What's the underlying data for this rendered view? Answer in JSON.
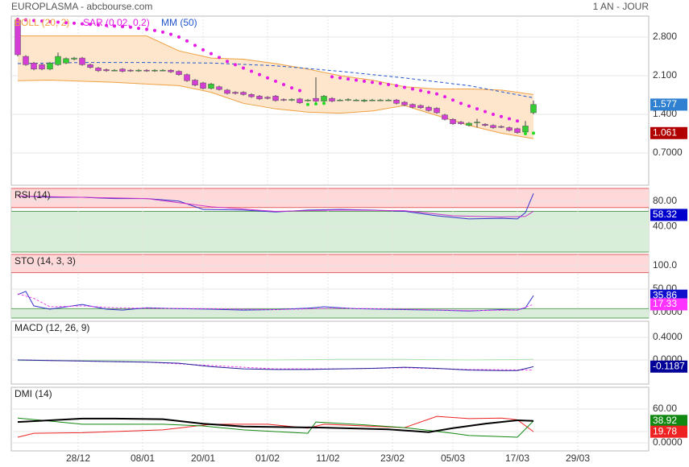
{
  "header": {
    "title": "EUROPLASMA - abcbourse.com",
    "period": "1 AN - JOUR"
  },
  "chart_data": [
    {
      "type": "candlestick",
      "open": [
        3.11,
        2.45,
        2.33,
        2.3,
        2.22,
        2.3,
        2.33,
        2.4,
        2.42,
        2.3,
        2.24,
        2.21,
        2.2,
        2.22,
        2.2,
        2.19,
        2.2,
        2.19,
        2.2,
        2.2,
        2.18,
        2.12,
        2.02,
        1.97,
        1.87,
        1.9,
        1.84,
        1.8,
        1.8,
        1.76,
        1.73,
        1.71,
        1.73,
        1.67,
        1.66,
        1.68,
        1.65,
        1.69,
        1.64,
        1.69,
        1.66,
        1.66,
        1.66,
        1.64,
        1.66,
        1.66,
        1.66,
        1.66,
        1.62,
        1.58,
        1.56,
        1.53,
        1.51,
        1.39,
        1.31,
        1.26,
        1.2,
        1.25,
        1.22,
        1.2,
        1.18,
        1.16,
        1.14,
        1.08,
        1.43
      ],
      "high": [
        3.15,
        2.47,
        2.35,
        2.32,
        2.35,
        2.52,
        2.43,
        2.44,
        2.44,
        2.32,
        2.26,
        2.23,
        2.22,
        2.24,
        2.22,
        2.22,
        2.22,
        2.22,
        2.22,
        2.22,
        2.2,
        2.14,
        2.04,
        1.99,
        1.97,
        1.92,
        1.86,
        1.82,
        1.82,
        1.78,
        1.75,
        1.73,
        1.75,
        1.69,
        1.69,
        1.7,
        1.68,
        2.07,
        1.75,
        1.71,
        1.68,
        1.69,
        1.68,
        1.68,
        1.68,
        1.68,
        1.68,
        1.68,
        1.64,
        1.6,
        1.58,
        1.55,
        1.53,
        1.41,
        1.33,
        1.28,
        1.26,
        1.32,
        1.24,
        1.22,
        1.2,
        1.18,
        1.16,
        1.28,
        1.65
      ],
      "low": [
        2.45,
        2.28,
        2.2,
        2.2,
        2.2,
        2.28,
        2.31,
        2.38,
        2.28,
        2.23,
        2.17,
        2.17,
        2.18,
        2.16,
        2.17,
        2.17,
        2.17,
        2.17,
        2.18,
        2.15,
        2.1,
        1.99,
        1.91,
        1.85,
        1.85,
        1.83,
        1.76,
        1.76,
        1.74,
        1.7,
        1.66,
        1.67,
        1.63,
        1.64,
        1.64,
        1.59,
        1.63,
        1.62,
        1.62,
        1.62,
        1.64,
        1.64,
        1.64,
        1.62,
        1.64,
        1.64,
        1.64,
        1.58,
        1.55,
        1.51,
        1.5,
        1.45,
        1.41,
        1.29,
        1.21,
        1.21,
        1.18,
        1.16,
        1.18,
        1.14,
        1.15,
        1.09,
        1.05,
        1.06,
        1.4
      ],
      "close": [
        2.48,
        2.3,
        2.22,
        2.22,
        2.33,
        2.45,
        2.41,
        2.42,
        2.3,
        2.25,
        2.19,
        2.19,
        2.2,
        2.18,
        2.19,
        2.2,
        2.19,
        2.2,
        2.2,
        2.17,
        2.12,
        2.01,
        1.93,
        1.87,
        1.95,
        1.85,
        1.78,
        1.78,
        1.76,
        1.72,
        1.68,
        1.69,
        1.65,
        1.66,
        1.67,
        1.61,
        1.66,
        1.64,
        1.73,
        1.64,
        1.66,
        1.67,
        1.66,
        1.66,
        1.66,
        1.66,
        1.66,
        1.6,
        1.57,
        1.53,
        1.52,
        1.47,
        1.43,
        1.31,
        1.23,
        1.23,
        1.24,
        1.26,
        1.2,
        1.16,
        1.17,
        1.11,
        1.07,
        1.19,
        1.58
      ],
      "up_color": "#33cc33",
      "down_color": "#d63cd6",
      "ylim": [
        0.117,
        3.18
      ],
      "yticks": [
        {
          "value": 2.8,
          "label": "2.800"
        },
        {
          "value": 2.1,
          "label": "2.100"
        },
        {
          "value": 1.4,
          "label": "1.400"
        },
        {
          "value": 0.7,
          "label": "0.7000"
        }
      ],
      "bands": {
        "name": "BOLL (20, 2)",
        "color": "#f0a040",
        "fill": "#fde6cc",
        "x": [
          0,
          4,
          8,
          12,
          16,
          20,
          24,
          28,
          32,
          36,
          40,
          44,
          48,
          52,
          56,
          60,
          64
        ],
        "upper": [
          2.82,
          2.82,
          2.82,
          2.82,
          2.82,
          2.55,
          2.42,
          2.4,
          2.32,
          2.22,
          2.1,
          2.02,
          1.9,
          1.86,
          1.86,
          1.84,
          1.76
        ],
        "lower": [
          2.01,
          2.02,
          2.0,
          1.98,
          1.95,
          1.92,
          1.8,
          1.6,
          1.5,
          1.44,
          1.42,
          1.46,
          1.56,
          1.38,
          1.2,
          1.06,
          0.96
        ]
      },
      "sar": {
        "name": "SAR (0.02, 0.2)",
        "color": "#e619e6",
        "up_color": "#22dd22",
        "values": [
          3.12,
          3.11,
          3.1,
          3.09,
          3.08,
          3.07,
          3.06,
          3.05,
          3.04,
          3.03,
          3.02,
          3.01,
          3.0,
          2.99,
          2.98,
          2.96,
          2.94,
          2.92,
          2.89,
          2.85,
          2.8,
          2.73,
          2.65,
          2.57,
          2.5,
          2.43,
          2.36,
          2.3,
          2.24,
          2.18,
          2.12,
          2.06,
          2.0,
          1.94,
          1.88,
          1.83,
          1.58,
          1.59,
          1.6,
          2.08,
          2.06,
          2.04,
          2.02,
          2.0,
          1.98,
          1.96,
          1.94,
          1.92,
          1.89,
          1.86,
          1.83,
          1.8,
          1.77,
          1.72,
          1.66,
          1.6,
          1.55,
          1.5,
          1.45,
          1.4,
          1.36,
          1.32,
          1.28,
          1.05,
          1.06
        ]
      },
      "ma": {
        "name": "MM (50)",
        "color": "#2255cc",
        "x": [
          0,
          8,
          16,
          24,
          32,
          40,
          48,
          56,
          64
        ],
        "values": [
          2.32,
          2.34,
          2.34,
          2.33,
          2.28,
          2.18,
          2.06,
          1.92,
          1.7
        ]
      },
      "markers": [
        {
          "value": 1.577,
          "color": "#2f80d0"
        },
        {
          "value": 1.061,
          "color": "#b00000"
        }
      ]
    },
    {
      "type": "line",
      "title": "RSI (14)",
      "ylim": [
        0,
        100
      ],
      "yticks": [
        {
          "value": 80,
          "label": "80.00"
        },
        {
          "value": 40,
          "label": "40.00"
        }
      ],
      "zones": [
        {
          "from": 70,
          "to": 100,
          "color": "#ffd9d9",
          "edge": "#e06060"
        },
        {
          "from": 0,
          "to": 64,
          "color": "#d9eed9",
          "edge": "#60a060"
        }
      ],
      "series": [
        {
          "color": "#3333cc",
          "x": [
            0,
            4,
            8,
            12,
            16,
            20,
            23,
            28,
            32,
            36,
            40,
            44,
            48,
            52,
            56,
            60,
            62,
            63,
            64
          ],
          "values": [
            88,
            86,
            86,
            84,
            84,
            80,
            67,
            66,
            63,
            66,
            67,
            66,
            64,
            57,
            52,
            53,
            52,
            62,
            92
          ]
        },
        {
          "color": "#cc33cc",
          "x": [
            0,
            8,
            16,
            24,
            32,
            40,
            48,
            54,
            60,
            63,
            64
          ],
          "values": [
            88,
            86,
            84,
            71,
            64,
            66,
            65,
            57,
            55,
            56,
            64
          ]
        }
      ],
      "markers": [
        {
          "value": 58.32,
          "color": "#0000cc"
        }
      ]
    },
    {
      "type": "line",
      "title": "STO (14, 3, 3)",
      "ylim": [
        -12,
        124
      ],
      "yticks": [
        {
          "value": 100,
          "label": "100.0"
        },
        {
          "value": 50,
          "label": "50.00"
        },
        {
          "value": 0,
          "label": "0.0000"
        }
      ],
      "zones": [
        {
          "from": 85,
          "to": 124,
          "color": "#ffd9d9",
          "edge": "#e06060"
        },
        {
          "from": -12,
          "to": 8,
          "color": "#d9eed9",
          "edge": "#60a060"
        }
      ],
      "series": [
        {
          "color": "#3333cc",
          "x": [
            0,
            1,
            2,
            4,
            8,
            11,
            13,
            16,
            20,
            24,
            28,
            32,
            36,
            38,
            42,
            48,
            52,
            56,
            60,
            62,
            63,
            64
          ],
          "values": [
            38,
            45,
            14,
            7,
            17,
            7,
            5,
            10,
            8,
            7,
            5,
            6,
            9,
            12,
            8,
            6,
            5,
            3,
            6,
            5,
            10,
            35.86
          ]
        },
        {
          "color": "#ee44ee",
          "dash": true,
          "x": [
            0,
            2,
            4,
            8,
            12,
            16,
            24,
            32,
            40,
            48,
            56,
            62,
            64
          ],
          "values": [
            40,
            30,
            12,
            14,
            10,
            9,
            8,
            6,
            9,
            7,
            4,
            5,
            17.33
          ]
        }
      ],
      "markers": [
        {
          "value": 35.86,
          "color": "#1010cc"
        },
        {
          "value": 17.33,
          "color": "#ff33ff"
        }
      ]
    },
    {
      "type": "line",
      "title": "MACD (12, 26, 9)",
      "ylim": [
        -0.429,
        0.686
      ],
      "yticks": [
        {
          "value": 0.4,
          "label": "0.4000"
        },
        {
          "value": 0,
          "label": "0.0000"
        }
      ],
      "series": [
        {
          "color": "#aee8ae",
          "x": [
            0,
            8,
            16,
            24,
            32,
            40,
            48,
            56,
            64
          ],
          "values": [
            -0.01,
            -0.01,
            -0.01,
            0.0,
            0.0,
            0.01,
            0.01,
            0.0,
            0.01
          ]
        },
        {
          "color": "#ee44ee",
          "dash": true,
          "x": [
            0,
            8,
            16,
            24,
            32,
            40,
            48,
            56,
            64
          ],
          "values": [
            0.0,
            -0.02,
            -0.04,
            -0.1,
            -0.16,
            -0.16,
            -0.14,
            -0.17,
            -0.18
          ]
        },
        {
          "color": "#222299",
          "x": [
            0,
            4,
            8,
            12,
            16,
            20,
            24,
            28,
            32,
            36,
            40,
            44,
            48,
            52,
            56,
            60,
            62,
            64
          ],
          "values": [
            0.0,
            -0.01,
            -0.02,
            -0.03,
            -0.04,
            -0.06,
            -0.12,
            -0.16,
            -0.17,
            -0.17,
            -0.16,
            -0.15,
            -0.13,
            -0.15,
            -0.18,
            -0.19,
            -0.19,
            -0.12
          ]
        }
      ],
      "markers": [
        {
          "value": -0.1187,
          "color": "#000099"
        }
      ]
    },
    {
      "type": "line",
      "title": "DMI (14)",
      "ylim": [
        -14.3,
        98.6
      ],
      "yticks": [
        {
          "value": 60,
          "label": "60.00"
        },
        {
          "value": 20,
          "label": "20.00"
        },
        {
          "value": 0,
          "label": "0.0000"
        }
      ],
      "series": [
        {
          "color": "#ee2222",
          "x": [
            0,
            2,
            8,
            18,
            24,
            31,
            36,
            38,
            48,
            52,
            56,
            60,
            62,
            64
          ],
          "values": [
            10,
            17,
            18,
            23,
            33,
            33,
            26,
            33,
            27,
            47,
            43,
            44,
            41,
            19.78
          ]
        },
        {
          "color": "#118811",
          "x": [
            0,
            3,
            8,
            18,
            23,
            28,
            36,
            37,
            43,
            48,
            54,
            56,
            62,
            64
          ],
          "values": [
            44,
            40,
            33,
            33,
            30,
            23,
            17,
            37,
            32,
            27,
            17,
            13,
            10,
            38.92
          ]
        },
        {
          "color": "#000000",
          "width": 2,
          "x": [
            0,
            4,
            8,
            12,
            18,
            23,
            28,
            38,
            46,
            51,
            54,
            58,
            62,
            64
          ],
          "values": [
            37,
            40,
            43,
            43,
            42,
            34,
            29,
            27,
            24,
            19,
            26,
            34,
            40,
            39
          ]
        }
      ],
      "markers": [
        {
          "value": 38.92,
          "color": "#118811"
        },
        {
          "value": 19.78,
          "color": "#ee2222"
        }
      ],
      "xlim": [
        -0.8,
        78.3
      ],
      "xticks": [
        {
          "value": 7.5,
          "label": "28/12"
        },
        {
          "value": 15.5,
          "label": "08/01"
        },
        {
          "value": 23,
          "label": "20/01"
        },
        {
          "value": 31,
          "label": "01/02"
        },
        {
          "value": 38.5,
          "label": "11/02"
        },
        {
          "value": 46.5,
          "label": "23/02"
        },
        {
          "value": 54,
          "label": "05/03"
        },
        {
          "value": 62,
          "label": "17/03"
        },
        {
          "value": 69.5,
          "label": "29/03"
        }
      ]
    }
  ]
}
